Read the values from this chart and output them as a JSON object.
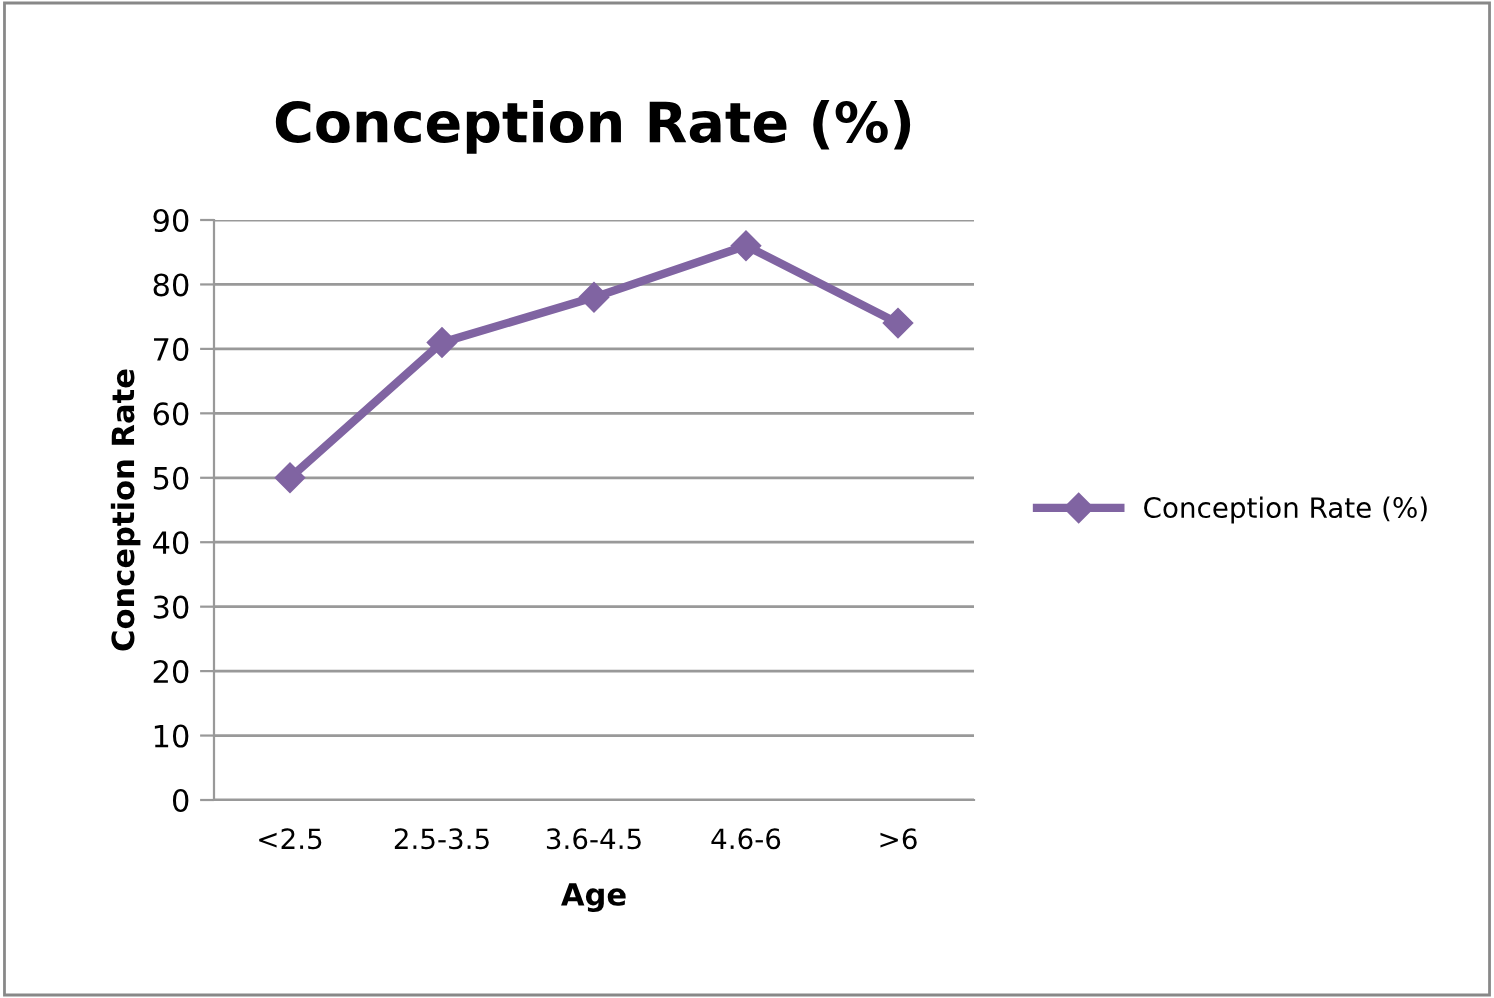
{
  "chart_data": {
    "type": "line",
    "title": "Conception Rate (%)",
    "xlabel": "Age",
    "ylabel": "Conception Rate",
    "categories": [
      "<2.5",
      "2.5-3.5",
      "3.6-4.5",
      "4.6-6",
      ">6"
    ],
    "series": [
      {
        "name": "Conception Rate (%)",
        "color": "#8064a2",
        "values": [
          50,
          71,
          78,
          86,
          74
        ]
      }
    ],
    "ylim": [
      0,
      90
    ],
    "yticks": [
      0,
      10,
      20,
      30,
      40,
      50,
      60,
      70,
      80,
      90
    ],
    "grid": "y",
    "legend": "right",
    "marker": "diamond",
    "line_style": "solid"
  }
}
